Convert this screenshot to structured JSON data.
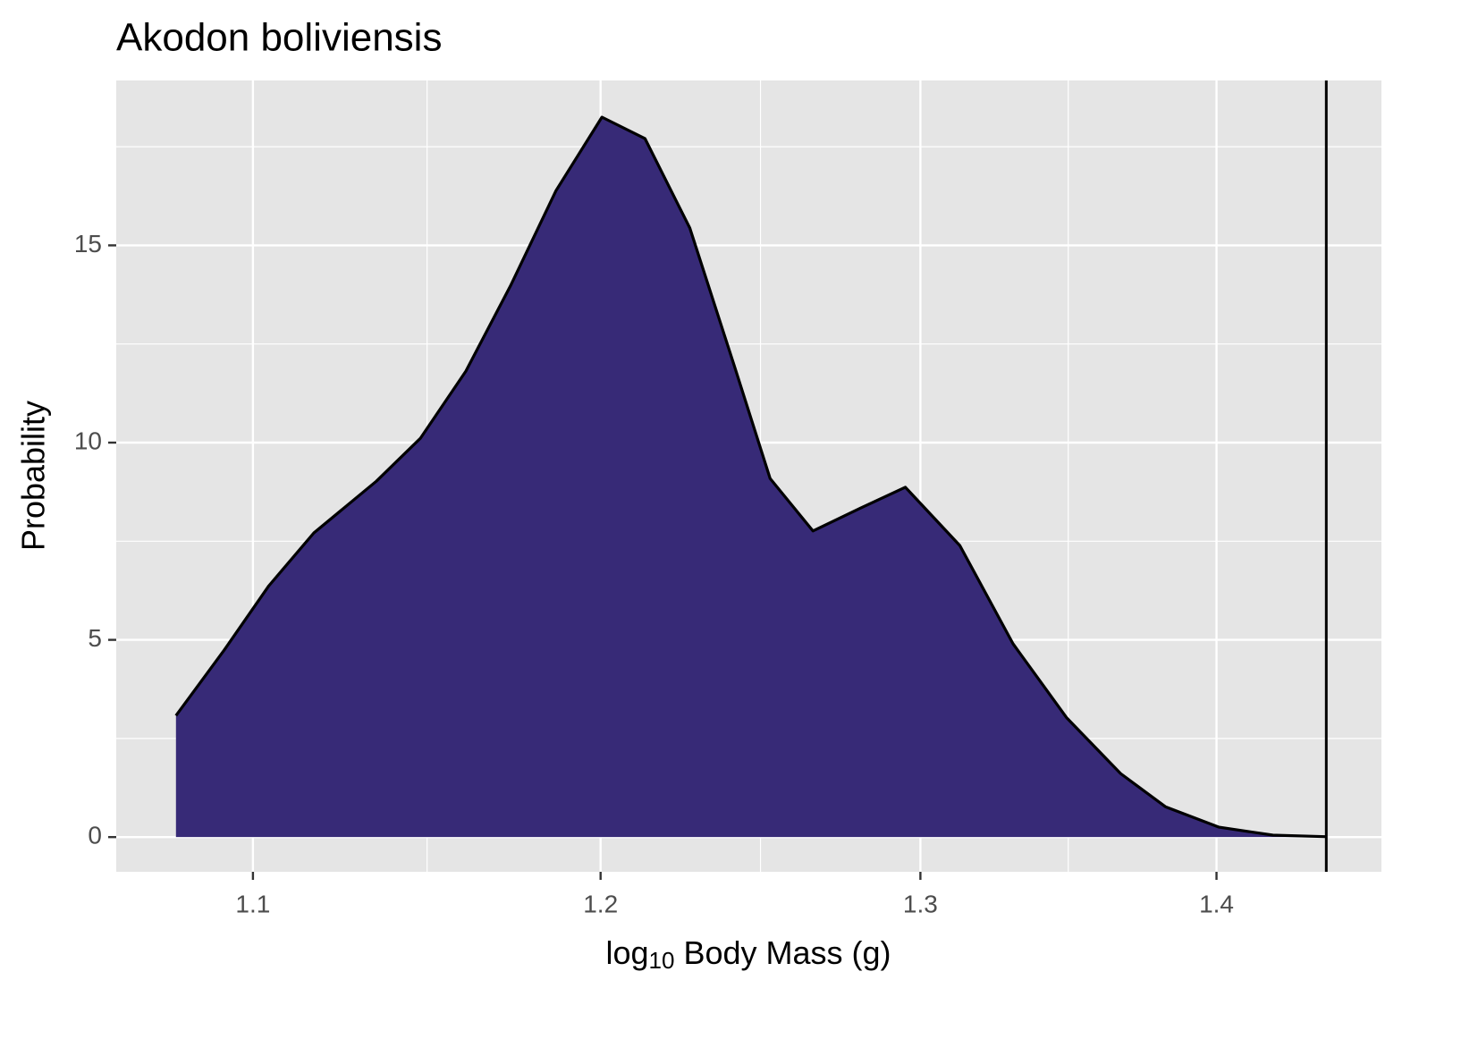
{
  "chart_data": {
    "type": "area",
    "title": "Akodon boliviensis",
    "xlabel": {
      "base": "log",
      "sub": "10",
      "rest": " Body Mass (g)"
    },
    "ylabel": "Probability",
    "x": [
      1.079,
      1.0921,
      1.1044,
      1.1169,
      1.1345,
      1.1471,
      1.1602,
      1.1732,
      1.1867,
      1.2004,
      1.2134,
      1.2271,
      1.2409,
      1.252,
      1.2655,
      1.2807,
      1.2951,
      1.3129,
      1.3305,
      1.3485,
      1.3668,
      1.3822,
      1.4009,
      1.4199,
      1.4386
    ],
    "values": [
      3.08,
      4.74,
      6.37,
      7.71,
      9.02,
      10.11,
      11.81,
      13.97,
      16.39,
      18.25,
      17.71,
      15.44,
      11.93,
      9.09,
      7.76,
      8.34,
      8.87,
      7.39,
      4.9,
      3.02,
      1.61,
      0.77,
      0.25,
      0.05,
      0.01
    ],
    "color": "#372a77",
    "line_color": "#000000",
    "vline": 1.439,
    "xlog": true,
    "xlim": [
      1.063,
      1.459
    ],
    "xticks": [
      1.1,
      1.2,
      1.3,
      1.4
    ],
    "xminor": [
      1.149,
      1.249,
      1.349
    ],
    "ylim": [
      -0.88,
      19.18
    ],
    "yticks": [
      0,
      5,
      10,
      15
    ],
    "yminor": [
      2.5,
      7.5,
      12.5,
      17.5
    ],
    "grid": true
  }
}
